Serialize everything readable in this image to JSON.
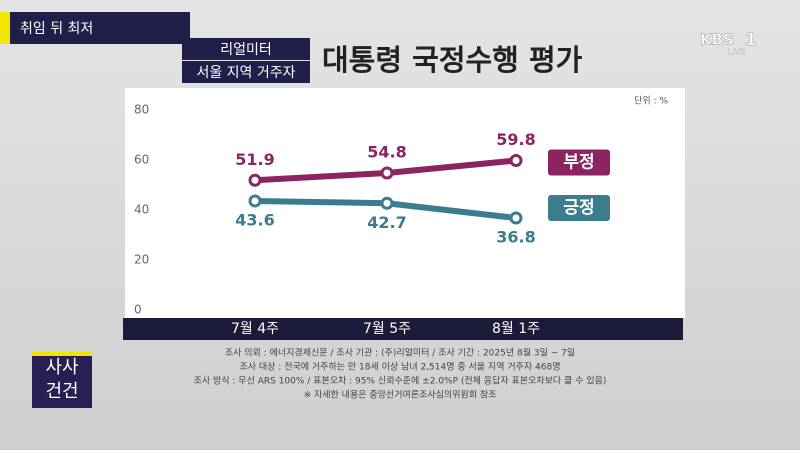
{
  "chart_data": {
    "type": "line",
    "title": "대통령 국정수행 평가",
    "tag": "취임 뒤 최저",
    "source_labels": [
      "리얼미터",
      "서울 지역 거주자"
    ],
    "unit": "단위 : %",
    "channel": {
      "name": "KBS",
      "number": "1",
      "status": "LIVE"
    },
    "program": [
      "사사",
      "건건"
    ],
    "categories": [
      "7월 4주",
      "7월 5주",
      "8월 1주"
    ],
    "series": [
      {
        "name": "부정",
        "color": "#8c2461",
        "values": [
          51.9,
          54.8,
          59.8
        ]
      },
      {
        "name": "긍정",
        "color": "#3b7d8c",
        "values": [
          43.6,
          42.7,
          36.8
        ]
      }
    ],
    "ylim": [
      0,
      80
    ],
    "yticks": [
      0,
      20,
      40,
      60,
      80
    ],
    "legend": "right",
    "footnotes": [
      "조사 의뢰 : 에너지경제신문 / 조사 기관 : (주)리얼미터 / 조사 기간 : 2025년 8월 3일 ~ 7일",
      "조사 대상 : 전국에 거주하는 만 18세 이상 남녀 2,514명 중 서울 지역 거주자 468명",
      "조사 방식 : 무선 ARS 100% / 표본오차 : 95% 신뢰수준에 ±2.0%P (전체 응답자 표본오차보다 클 수 있음)",
      "※ 자세한 내용은 중앙선거여론조사심의위원회 참조"
    ]
  }
}
